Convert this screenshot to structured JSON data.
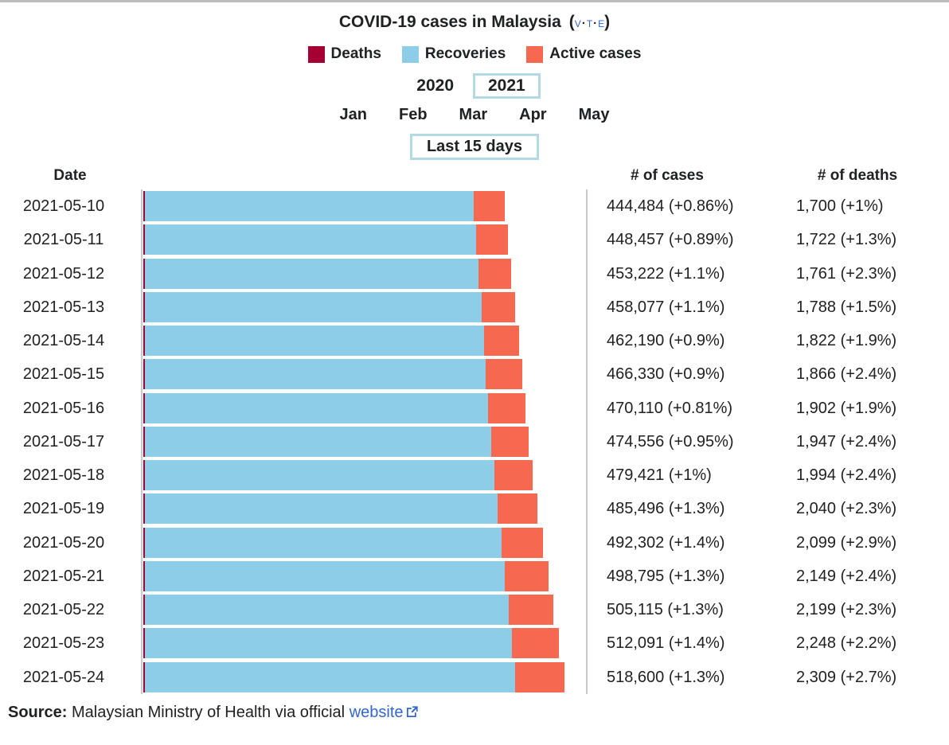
{
  "header": {
    "title": "COVID-19 cases in Malaysia",
    "vte": {
      "open": "(",
      "v": "v",
      "t": "t",
      "e": "e",
      "dot": "·",
      "close": ")"
    },
    "legend": [
      {
        "label": "Deaths",
        "color": "#A50034"
      },
      {
        "label": "Recoveries",
        "color": "#8DCDE8"
      },
      {
        "label": "Active cases",
        "color": "#F66850"
      }
    ],
    "years": [
      {
        "label": "2020",
        "selected": false
      },
      {
        "label": "2021",
        "selected": true
      }
    ],
    "months": [
      "Jan",
      "Feb",
      "Mar",
      "Apr",
      "May"
    ],
    "range_button": "Last 15 days"
  },
  "table": {
    "columns": {
      "date": "Date",
      "cases": "# of cases",
      "deaths": "# of deaths"
    },
    "rows": [
      {
        "date": "2021-05-10",
        "cases": "444,484 (+0.86%)",
        "deaths": "1,700 (+1%)"
      },
      {
        "date": "2021-05-11",
        "cases": "448,457 (+0.89%)",
        "deaths": "1,722 (+1.3%)"
      },
      {
        "date": "2021-05-12",
        "cases": "453,222 (+1.1%)",
        "deaths": "1,761 (+2.3%)"
      },
      {
        "date": "2021-05-13",
        "cases": "458,077 (+1.1%)",
        "deaths": "1,788 (+1.5%)"
      },
      {
        "date": "2021-05-14",
        "cases": "462,190 (+0.9%)",
        "deaths": "1,822 (+1.9%)"
      },
      {
        "date": "2021-05-15",
        "cases": "466,330 (+0.9%)",
        "deaths": "1,866 (+2.4%)"
      },
      {
        "date": "2021-05-16",
        "cases": "470,110 (+0.81%)",
        "deaths": "1,902 (+1.9%)"
      },
      {
        "date": "2021-05-17",
        "cases": "474,556 (+0.95%)",
        "deaths": "1,947 (+2.4%)"
      },
      {
        "date": "2021-05-18",
        "cases": "479,421 (+1%)",
        "deaths": "1,994 (+2.4%)"
      },
      {
        "date": "2021-05-19",
        "cases": "485,496 (+1.3%)",
        "deaths": "2,040 (+2.3%)"
      },
      {
        "date": "2021-05-20",
        "cases": "492,302 (+1.4%)",
        "deaths": "2,099 (+2.9%)"
      },
      {
        "date": "2021-05-21",
        "cases": "498,795 (+1.3%)",
        "deaths": "2,149 (+2.4%)"
      },
      {
        "date": "2021-05-22",
        "cases": "505,115 (+1.3%)",
        "deaths": "2,199 (+2.3%)"
      },
      {
        "date": "2021-05-23",
        "cases": "512,091 (+1.4%)",
        "deaths": "2,248 (+2.2%)"
      },
      {
        "date": "2021-05-24",
        "cases": "518,600 (+1.3%)",
        "deaths": "2,309 (+2.7%)"
      }
    ]
  },
  "footer": {
    "source_label": "Source:",
    "source_text": " Malaysian Ministry of Health via official ",
    "link_text": "website",
    "link_color": "#3366cc"
  },
  "chart_data": {
    "type": "bar",
    "orientation": "horizontal",
    "stacked": true,
    "legend_position": "top",
    "grid": false,
    "x_axis_max": 518600,
    "categories": [
      "2021-05-10",
      "2021-05-11",
      "2021-05-12",
      "2021-05-13",
      "2021-05-14",
      "2021-05-15",
      "2021-05-16",
      "2021-05-17",
      "2021-05-18",
      "2021-05-19",
      "2021-05-20",
      "2021-05-21",
      "2021-05-22",
      "2021-05-23",
      "2021-05-24"
    ],
    "totals_cases": [
      444484,
      448457,
      453222,
      458077,
      462190,
      466330,
      470110,
      474556,
      479421,
      485496,
      492302,
      498795,
      505115,
      512091,
      518600
    ],
    "cases_change_pct": [
      0.86,
      0.89,
      1.1,
      1.1,
      0.9,
      0.9,
      0.81,
      0.95,
      1.0,
      1.3,
      1.4,
      1.3,
      1.3,
      1.4,
      1.3
    ],
    "deaths_change_pct": [
      1.0,
      1.3,
      2.3,
      1.5,
      1.9,
      2.4,
      1.9,
      2.4,
      2.4,
      2.3,
      2.9,
      2.4,
      2.3,
      2.2,
      2.7
    ],
    "series": [
      {
        "name": "Deaths",
        "color": "#A50034",
        "values": [
          1700,
          1722,
          1761,
          1788,
          1822,
          1866,
          1902,
          1947,
          1994,
          2040,
          2099,
          2149,
          2199,
          2248,
          2309
        ]
      },
      {
        "name": "Recoveries",
        "color": "#8DCDE8",
        "note": "estimated from bar widths",
        "values": [
          404784,
          407735,
          410961,
          414289,
          417368,
          419964,
          422708,
          426109,
          429927,
          433956,
          438703,
          443146,
          447416,
          451843,
          455791
        ]
      },
      {
        "name": "Active cases",
        "color": "#F66850",
        "note": "estimated from bar widths",
        "values": [
          38000,
          39000,
          40500,
          42000,
          43000,
          44500,
          45500,
          46500,
          47500,
          49500,
          51500,
          53500,
          55500,
          58000,
          60500
        ]
      }
    ],
    "title": "COVID-19 cases in Malaysia"
  }
}
